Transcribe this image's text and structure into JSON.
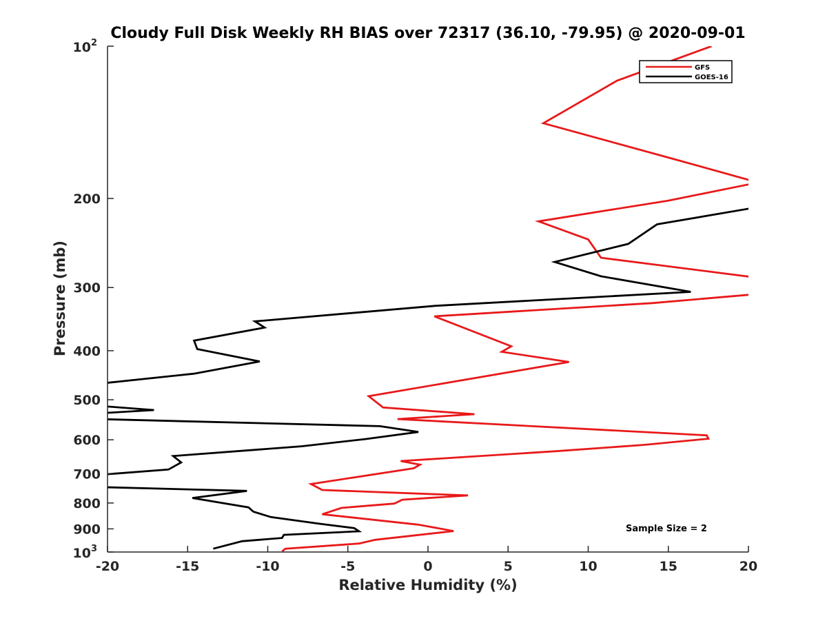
{
  "chart_data": {
    "type": "line",
    "title": "Cloudy Full Disk Weekly RH BIAS over 72317 (36.10, -79.95) @ 2020-09-01",
    "xlabel": "Relative Humidity (%)",
    "ylabel": "Pressure (mb)",
    "xlim": [
      -20,
      20
    ],
    "ylim": [
      100,
      1000
    ],
    "y_scale": "log",
    "y_reversed": true,
    "grid": false,
    "legend_position": "top-right",
    "x_ticks": [
      {
        "value": -20,
        "label": "-20"
      },
      {
        "value": -15,
        "label": "-15"
      },
      {
        "value": -10,
        "label": "-10"
      },
      {
        "value": -5,
        "label": "-5"
      },
      {
        "value": 0,
        "label": "0"
      },
      {
        "value": 5,
        "label": "5"
      },
      {
        "value": 10,
        "label": "10"
      },
      {
        "value": 15,
        "label": "15"
      },
      {
        "value": 20,
        "label": "20"
      }
    ],
    "y_ticks": [
      {
        "value": 100,
        "base": "10",
        "exp": "2"
      },
      {
        "value": 200,
        "label": "200"
      },
      {
        "value": 300,
        "label": "300"
      },
      {
        "value": 400,
        "label": "400"
      },
      {
        "value": 500,
        "label": "500"
      },
      {
        "value": 600,
        "label": "600"
      },
      {
        "value": 700,
        "label": "700"
      },
      {
        "value": 800,
        "label": "800"
      },
      {
        "value": 900,
        "label": "900"
      },
      {
        "value": 1000,
        "base": "10",
        "exp": "3"
      }
    ],
    "annotation": "Sample Size = 2",
    "series": [
      {
        "name": "GFS",
        "color": "#e8191a",
        "points": [
          [
            17.7,
            100
          ],
          [
            11.8,
            117
          ],
          [
            7.2,
            142
          ],
          [
            15.0,
            166
          ],
          [
            20.6,
            186
          ],
          [
            15.0,
            202
          ],
          [
            6.9,
            222
          ],
          [
            10.0,
            241
          ],
          [
            10.8,
            262
          ],
          [
            20.6,
            287
          ],
          [
            20.6,
            309
          ],
          [
            14.0,
            322
          ],
          [
            0.4,
            342
          ],
          [
            5.2,
            392
          ],
          [
            4.6,
            402
          ],
          [
            8.8,
            421
          ],
          [
            -3.7,
            492
          ],
          [
            -2.8,
            518
          ],
          [
            2.9,
            534
          ],
          [
            -1.9,
            546
          ],
          [
            17.4,
            588
          ],
          [
            17.5,
            597
          ],
          [
            13.5,
            614
          ],
          [
            8.0,
            632
          ],
          [
            -1.7,
            661
          ],
          [
            -0.5,
            672
          ],
          [
            -0.9,
            683
          ],
          [
            -7.3,
            734
          ],
          [
            -6.6,
            754
          ],
          [
            2.5,
            773
          ],
          [
            -1.6,
            788
          ],
          [
            -2.1,
            802
          ],
          [
            -5.4,
            818
          ],
          [
            -6.6,
            842
          ],
          [
            -0.6,
            883
          ],
          [
            1.6,
            909
          ],
          [
            -3.3,
            946
          ],
          [
            -4.3,
            962
          ],
          [
            -8.9,
            985
          ],
          [
            -9.1,
            997
          ]
        ]
      },
      {
        "name": "GOES-16",
        "color": "#000000",
        "points": [
          [
            20.6,
            208
          ],
          [
            14.3,
            225
          ],
          [
            12.5,
            246
          ],
          [
            7.9,
            267
          ],
          [
            10.8,
            285
          ],
          [
            16.4,
            306
          ],
          [
            0.5,
            326
          ],
          [
            -10.8,
            350
          ],
          [
            -10.2,
            360
          ],
          [
            -14.6,
            382
          ],
          [
            -14.4,
            397
          ],
          [
            -10.5,
            420
          ],
          [
            -14.6,
            444
          ],
          [
            -20.6,
            465
          ],
          [
            -20.6,
            514
          ],
          [
            -17.1,
            524
          ],
          [
            -20.6,
            532
          ],
          [
            -20.6,
            546
          ],
          [
            -3.0,
            564
          ],
          [
            -0.6,
            579
          ],
          [
            -3.9,
            598
          ],
          [
            -7.9,
            618
          ],
          [
            -15.9,
            646
          ],
          [
            -15.4,
            665
          ],
          [
            -16.2,
            687
          ],
          [
            -20.6,
            704
          ],
          [
            -20.6,
            744
          ],
          [
            -11.3,
            757
          ],
          [
            -14.7,
            782
          ],
          [
            -11.2,
            816
          ],
          [
            -10.9,
            832
          ],
          [
            -9.8,
            853
          ],
          [
            -6.8,
            879
          ],
          [
            -4.6,
            897
          ],
          [
            -4.3,
            910
          ],
          [
            -9.0,
            925
          ],
          [
            -9.1,
            938
          ],
          [
            -11.6,
            952
          ],
          [
            -13.4,
            985
          ]
        ]
      }
    ]
  }
}
